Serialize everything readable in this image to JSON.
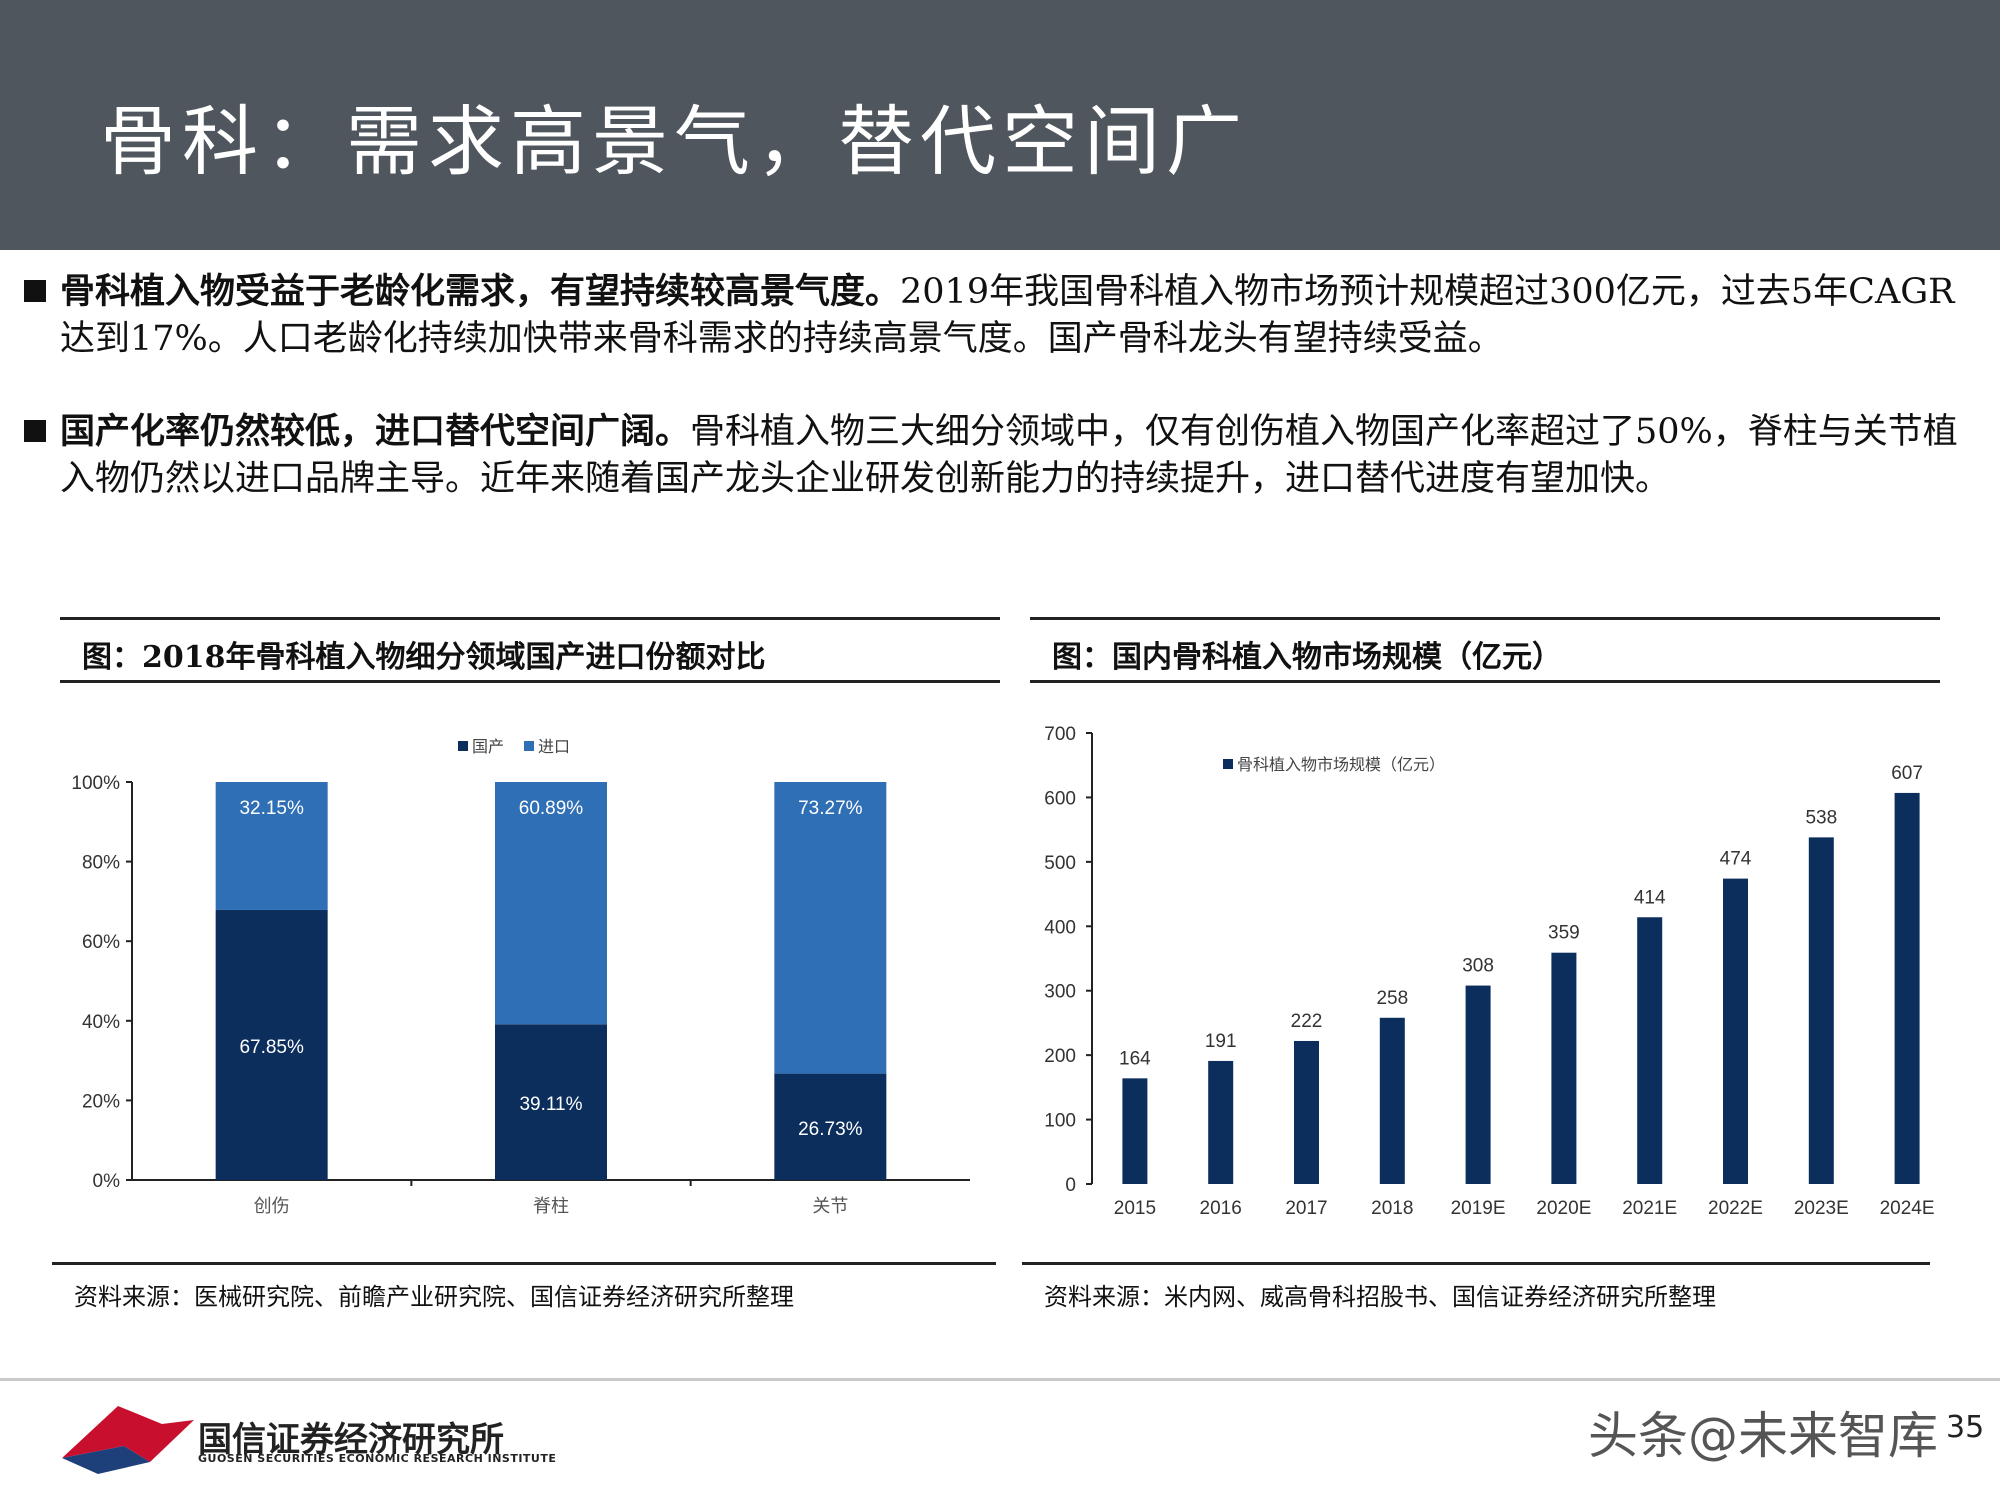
{
  "header": {
    "title": "骨科：需求高景气，替代空间广"
  },
  "bullets": [
    {
      "bold": "骨科植入物受益于老龄化需求，有望持续较高景气度。",
      "text": "2019年我国骨科植入物市场预计规模超过300亿元，过去5年CAGR达到17%。人口老龄化持续加快带来骨科需求的持续高景气度。国产骨科龙头有望持续受益。"
    },
    {
      "bold": "国产化率仍然较低，进口替代空间广阔。",
      "text": "骨科植入物三大细分领域中，仅有创伤植入物国产化率超过了50%，脊柱与关节植入物仍然以进口品牌主导。近年来随着国产龙头企业研发创新能力的持续提升，进口替代进度有望加快。"
    }
  ],
  "left_panel": {
    "title": "图：2018年骨科植入物细分领域国产进口份额对比",
    "source": "资料来源：医械研究院、前瞻产业研究院、国信证券经济研究所整理"
  },
  "right_panel": {
    "title": "图：国内骨科植入物市场规模（亿元）",
    "source": "资料来源：米内网、威高骨科招股书、国信证券经济研究所整理"
  },
  "chart_data": [
    {
      "type": "bar",
      "stacked": true,
      "title": "",
      "categories": [
        "创伤",
        "脊柱",
        "关节"
      ],
      "series": [
        {
          "name": "国产",
          "values": [
            67.85,
            39.11,
            26.73
          ],
          "labels": [
            "67.85%",
            "39.11%",
            "26.73%"
          ],
          "color": "#0c2e5c"
        },
        {
          "name": "进口",
          "values": [
            32.15,
            60.89,
            73.27
          ],
          "labels": [
            "32.15%",
            "60.89%",
            "73.27%"
          ],
          "color": "#2f6fb5"
        }
      ],
      "yticks": [
        "0%",
        "20%",
        "40%",
        "60%",
        "80%",
        "100%"
      ],
      "ylim": [
        0,
        100
      ],
      "legend": "top-center"
    },
    {
      "type": "bar",
      "title": "",
      "categories": [
        "2015",
        "2016",
        "2017",
        "2018",
        "2019E",
        "2020E",
        "2021E",
        "2022E",
        "2023E",
        "2024E"
      ],
      "series": [
        {
          "name": "骨科植入物市场规模（亿元）",
          "values": [
            164,
            191,
            222,
            258,
            308,
            359,
            414,
            474,
            538,
            607
          ],
          "color": "#0c2e5c"
        }
      ],
      "yticks": [
        "0",
        "100",
        "200",
        "300",
        "400",
        "500",
        "600",
        "700"
      ],
      "ylim": [
        0,
        700
      ],
      "legend": "top-left"
    }
  ],
  "footer": {
    "logo_cn": "国信证券经济研究所",
    "logo_en": "GUOSEN SECURITIES ECONOMIC RESEARCH INSTITUTE",
    "watermark": "头条@未来智库",
    "page": "35",
    "logo_color": "#c8102e",
    "logo_color2": "#1d3f7a"
  }
}
